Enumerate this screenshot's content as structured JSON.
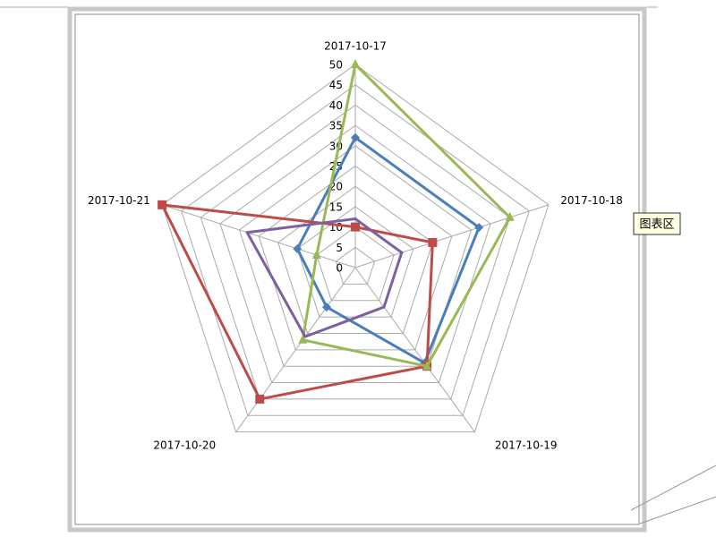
{
  "chart_data": {
    "type": "radar",
    "categories": [
      "2017-10-17",
      "2017-10-18",
      "2017-10-19",
      "2017-10-20",
      "2017-10-21"
    ],
    "series": [
      {
        "color": "#4a7ebb",
        "marker": "diamond",
        "values": [
          32,
          32,
          29,
          12,
          15
        ]
      },
      {
        "color": "#be4b48",
        "marker": "square",
        "values": [
          10,
          20,
          30,
          40,
          50
        ]
      },
      {
        "color": "#98b954",
        "marker": "triangle",
        "values": [
          50,
          40,
          30,
          22,
          10
        ]
      },
      {
        "color": "#7d60a0",
        "marker": "none",
        "values": [
          12,
          12,
          12,
          21,
          28
        ]
      }
    ],
    "ylim": [
      0,
      50
    ],
    "yticks": [
      0,
      5,
      10,
      15,
      20,
      25,
      30,
      35,
      40,
      45,
      50
    ],
    "grid": true,
    "tooltip": "图表区"
  }
}
